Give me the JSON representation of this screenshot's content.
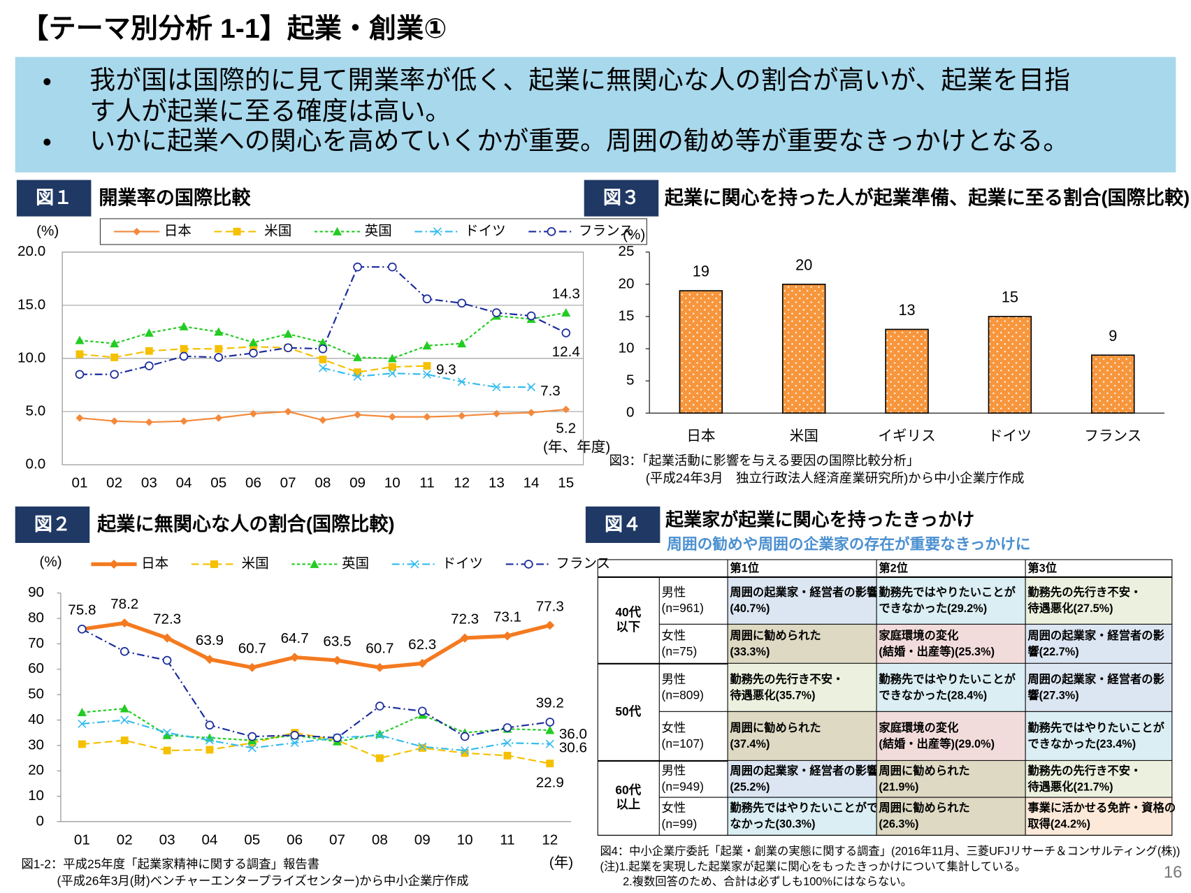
{
  "title": "【テーマ別分析 1-1】起業・創業①",
  "bullets": [
    [
      "我が国は国際的に見て開業率が低く、起業に無関心な人の割合が高いが、起業を目指",
      "す人が起業に至る確度は高い。"
    ],
    [
      "いかに起業への関心を高めていくかが重要。周囲の勧め等が重要なきっかけとなる。"
    ]
  ],
  "chart_data": [
    {
      "type": "line",
      "label": "図１",
      "title": "開業率の国際比較",
      "y_label": "(%)",
      "x_label": "(年、年度)",
      "grid": true,
      "legend_box": true,
      "categories": [
        "01",
        "02",
        "03",
        "04",
        "05",
        "06",
        "07",
        "08",
        "09",
        "10",
        "11",
        "12",
        "13",
        "14",
        "15"
      ],
      "ylim": [
        0,
        20
      ],
      "yticks": [
        {
          "value": 0,
          "label": "0.0"
        },
        {
          "value": 5,
          "label": "5.0"
        },
        {
          "value": 10,
          "label": "10.0"
        },
        {
          "value": 15,
          "label": "15.0"
        },
        {
          "value": 20,
          "label": "20.0"
        }
      ],
      "series": [
        {
          "name": "日本",
          "color": "#F4893B",
          "marker": "diamond",
          "dash": "none",
          "width": 2,
          "data_labels": "last",
          "label_position": "below",
          "values": [
            4.4,
            4.1,
            4.0,
            4.1,
            4.4,
            4.8,
            5.0,
            4.2,
            4.7,
            4.5,
            4.5,
            4.6,
            4.8,
            4.9,
            5.2
          ]
        },
        {
          "name": "米国",
          "color": "#F5C000",
          "marker": "square",
          "dash": "10 5",
          "width": 2,
          "data_labels": "last",
          "label_position": "right",
          "values": [
            10.4,
            10.1,
            10.7,
            10.9,
            10.9,
            11.1,
            11.0,
            9.9,
            8.7,
            9.2,
            9.3,
            null,
            null,
            null,
            null
          ]
        },
        {
          "name": "英国",
          "color": "#22CC22",
          "marker": "triangle",
          "dash": "4 3",
          "width": 2,
          "data_labels": "last",
          "label_position": "above",
          "values": [
            11.7,
            11.4,
            12.4,
            13.0,
            12.5,
            11.5,
            12.3,
            11.5,
            10.1,
            10.0,
            11.2,
            11.4,
            14.0,
            13.7,
            14.3
          ]
        },
        {
          "name": "ドイツ",
          "color": "#33BBEE",
          "marker": "x",
          "dash": "10 4 2 4",
          "width": 2,
          "data_labels": "last",
          "label_position": "right",
          "values": [
            null,
            null,
            null,
            null,
            null,
            null,
            null,
            9.1,
            8.3,
            8.6,
            8.5,
            7.8,
            7.3,
            7.3,
            null
          ]
        },
        {
          "name": "フランス",
          "color": "#1A2B9C",
          "marker": "circle",
          "dash": "10 4 2 4",
          "width": 2,
          "data_labels": "last",
          "label_position": "below",
          "values": [
            8.5,
            8.5,
            9.3,
            10.2,
            10.1,
            10.5,
            11.0,
            10.9,
            18.6,
            18.6,
            15.6,
            15.2,
            14.3,
            14.0,
            12.4
          ]
        }
      ]
    },
    {
      "type": "line",
      "label": "図２",
      "title": "起業に無関心な人の割合(国際比較)",
      "y_label": "(%)",
      "x_label": "(年)",
      "grid": false,
      "legend_box": false,
      "categories": [
        "01",
        "02",
        "03",
        "04",
        "05",
        "06",
        "07",
        "08",
        "09",
        "10",
        "11",
        "12"
      ],
      "ylim": [
        0,
        90
      ],
      "yticks": [
        0,
        10,
        20,
        30,
        40,
        50,
        60,
        70,
        80,
        90
      ],
      "series": [
        {
          "name": "日本",
          "color": "#F47A20",
          "marker": "diamond",
          "dash": "none",
          "width": 5,
          "data_labels": "all",
          "label_position": "above",
          "values": [
            75.8,
            78.2,
            72.3,
            63.9,
            60.7,
            64.7,
            63.5,
            60.7,
            62.3,
            72.3,
            73.1,
            77.3
          ]
        },
        {
          "name": "米国",
          "color": "#F5C000",
          "marker": "square",
          "dash": "10 5",
          "width": 2,
          "data_labels": "last",
          "label_position": "below",
          "values": [
            30.5,
            32,
            28,
            28.3,
            31,
            35,
            32,
            25,
            29,
            27,
            26,
            22.9
          ]
        },
        {
          "name": "英国",
          "color": "#22CC22",
          "marker": "triangle",
          "dash": "4 3",
          "width": 2,
          "data_labels": "last",
          "label_position": "right",
          "values": [
            43,
            44.5,
            34,
            33,
            32,
            34,
            31.5,
            34.5,
            42,
            35,
            36.5,
            36.0
          ],
          "value_labels": [
            null,
            null,
            null,
            null,
            null,
            null,
            null,
            null,
            null,
            null,
            null,
            "36.0"
          ]
        },
        {
          "name": "ドイツ",
          "color": "#33BBEE",
          "marker": "x",
          "dash": "10 4 2 4",
          "width": 2,
          "data_labels": "last",
          "label_position": "right",
          "values": [
            38.5,
            40,
            35,
            32,
            29,
            31,
            33,
            34,
            29.5,
            28,
            31,
            30.6
          ]
        },
        {
          "name": "フランス",
          "color": "#1A2B9C",
          "marker": "circle",
          "dash": "10 4 2 4",
          "width": 2,
          "data_labels": "last",
          "label_position": "above",
          "values": [
            75.8,
            67,
            63.5,
            38,
            33.5,
            34,
            33,
            45.5,
            43.5,
            33.5,
            37,
            39.2
          ]
        }
      ],
      "source": [
        "図1-2：平成25年度「起業家精神に関する調査」報告書",
        "(平成26年3月(財)ベンチャーエンタープライズセンター)から中小企業庁作成"
      ]
    },
    {
      "type": "bar",
      "label": "図３",
      "title": "起業に関心を持った人が起業準備、起業に至る割合(国際比較)",
      "y_label": "(%)",
      "color": "#F7963C",
      "categories": [
        "日本",
        "米国",
        "イギリス",
        "ドイツ",
        "フランス"
      ],
      "values": [
        19,
        20,
        13,
        15,
        9
      ],
      "ylim": [
        0,
        25
      ],
      "yticks": [
        0,
        5,
        10,
        15,
        20,
        25
      ],
      "source": [
        "図3：「起業活動に影響を与える要因の国際比較分析」",
        "(平成24年3月　独立行政法人経済産業研究所)から中小企業庁作成"
      ]
    }
  ],
  "table": {
    "label": "図４",
    "title": "起業家が起業に関心を持ったきっかけ",
    "subtitle": "周囲の勧めや周囲の企業家の存在が重要なきっかけに",
    "header": [
      "第1位",
      "第2位",
      "第3位"
    ],
    "groups": [
      {
        "label": [
          "40代",
          "以下"
        ],
        "rows": [
          {
            "sex": [
              "男性",
              "(n=961)"
            ],
            "cells": [
              {
                "lines": [
                  "周囲の起業家・経営者の影響",
                  "(40.7%)"
                ],
                "color": "#DCE6F2"
              },
              {
                "lines": [
                  "勤務先ではやりたいことが",
                  "できなかった(29.2%)"
                ],
                "color": "#DAEEF3"
              },
              {
                "lines": [
                  "勤務先の先行き不安・",
                  "待遇悪化(27.5%)"
                ],
                "color": "#EBF1DE"
              }
            ]
          },
          {
            "sex": [
              "女性",
              "(n=75)"
            ],
            "cells": [
              {
                "lines": [
                  "周囲に勧められた",
                  "(33.3%)"
                ],
                "color": "#DDD9C3"
              },
              {
                "lines": [
                  "家庭環境の変化",
                  "(結婚・出産等)(25.3%)"
                ],
                "color": "#F2DCDB"
              },
              {
                "lines": [
                  "周囲の起業家・経営者の影",
                  "響(22.7%)"
                ],
                "color": "#DCE6F2"
              }
            ]
          }
        ]
      },
      {
        "label": [
          "50代"
        ],
        "rows": [
          {
            "sex": [
              "男性",
              "(n=809)"
            ],
            "cells": [
              {
                "lines": [
                  "勤務先の先行き不安・",
                  "待遇悪化(35.7%)"
                ],
                "color": "#EBF1DE"
              },
              {
                "lines": [
                  "勤務先ではやりたいことが",
                  "できなかった(28.4%)"
                ],
                "color": "#DAEEF3"
              },
              {
                "lines": [
                  "周囲の起業家・経営者の影",
                  "響(27.3%)"
                ],
                "color": "#DCE6F2"
              }
            ]
          },
          {
            "sex": [
              "女性",
              "(n=107)"
            ],
            "cells": [
              {
                "lines": [
                  "周囲に勧められた",
                  "(37.4%)"
                ],
                "color": "#DDD9C3"
              },
              {
                "lines": [
                  "家庭環境の変化",
                  "(結婚・出産等)(29.0%)"
                ],
                "color": "#F2DCDB"
              },
              {
                "lines": [
                  "勤務先ではやりたいことが",
                  "できなかった(23.4%)"
                ],
                "color": "#DAEEF3"
              }
            ]
          }
        ]
      },
      {
        "label": [
          "60代",
          "以上"
        ],
        "rows": [
          {
            "sex": [
              "男性",
              "(n=949)"
            ],
            "cells": [
              {
                "lines": [
                  "周囲の起業家・経営者の影響",
                  "(25.2%)"
                ],
                "color": "#DCE6F2"
              },
              {
                "lines": [
                  "周囲に勧められた",
                  "(21.9%)"
                ],
                "color": "#DDD9C3"
              },
              {
                "lines": [
                  "勤務先の先行き不安・",
                  "待遇悪化(21.7%)"
                ],
                "color": "#EBF1DE"
              }
            ]
          },
          {
            "sex": [
              "女性",
              "(n=99)"
            ],
            "cells": [
              {
                "lines": [
                  "勤務先ではやりたいことができ",
                  "なかった(30.3%)"
                ],
                "color": "#DAEEF3"
              },
              {
                "lines": [
                  "周囲に勧められた",
                  "(26.3%)"
                ],
                "color": "#DDD9C3"
              },
              {
                "lines": [
                  "事業に活かせる免許・資格の",
                  "取得(24.2%)"
                ],
                "color": "#FDE9D9"
              }
            ]
          }
        ]
      }
    ],
    "notes": [
      "図4：中小企業庁委託「起業・創業の実態に関する調査」(2016年11月、三菱UFJリサーチ＆コンサルティング(株))",
      "(注)1.起業を実現した起業家が起業に関心をもったきっかけについて集計している。",
      "2.複数回答のため、合計は必ずしも100%にはならない。"
    ]
  },
  "page_number": "16"
}
